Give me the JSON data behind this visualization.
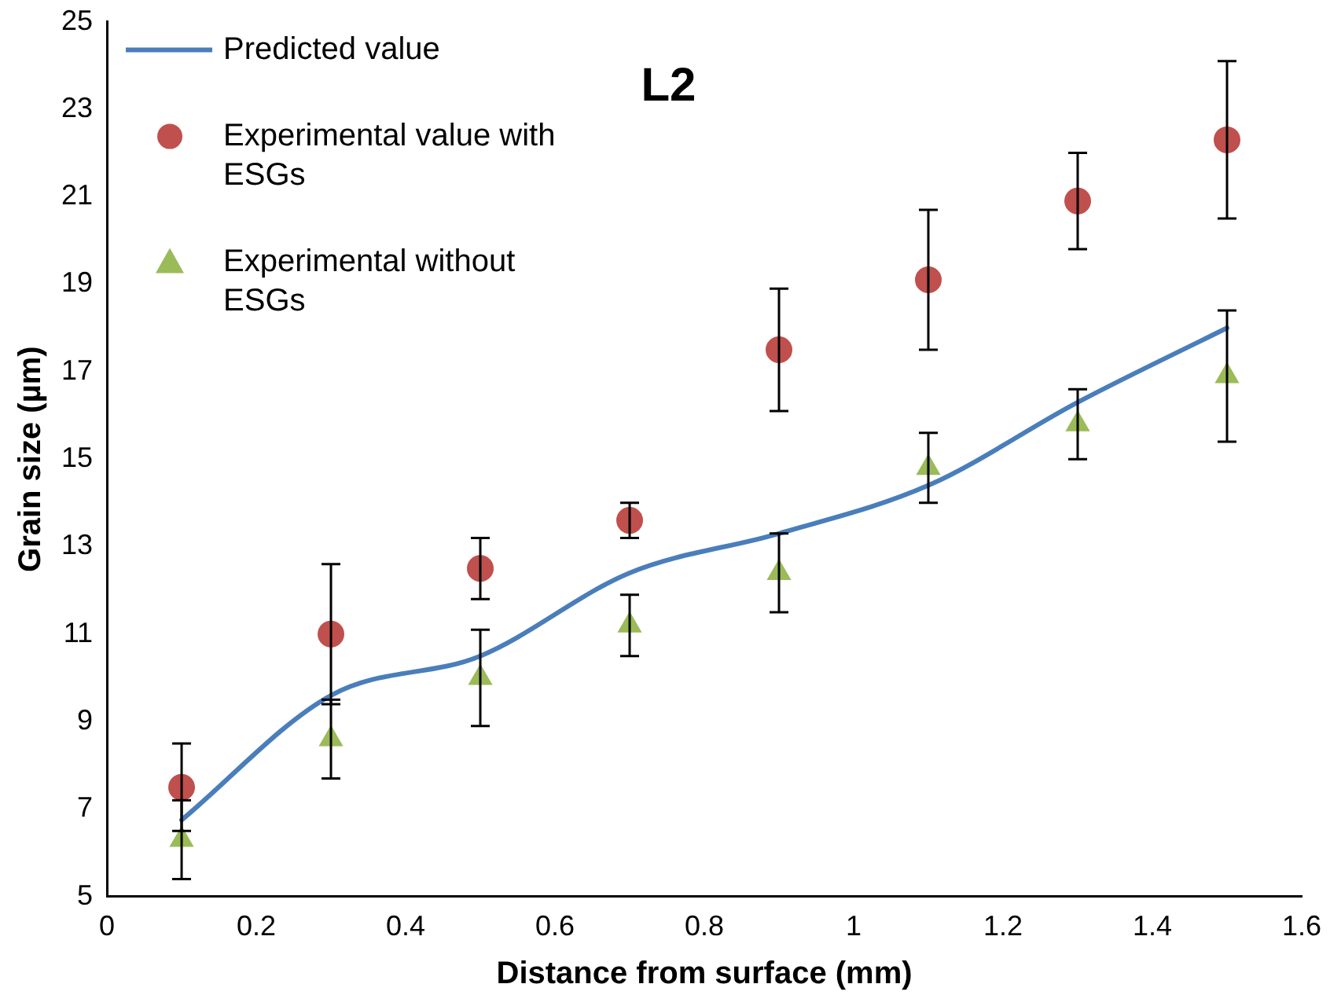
{
  "chart_data": {
    "type": "scatter",
    "title": "L2",
    "xlabel": "Distance from surface (mm)",
    "ylabel": "Grain size (µm)",
    "x": [
      0.1,
      0.3,
      0.5,
      0.7,
      0.9,
      1.1,
      1.3,
      1.5
    ],
    "series": [
      {
        "name": "Predicted value",
        "type": "line",
        "color": "#4a7ebb",
        "marker": "none",
        "values": [
          6.75,
          9.6,
          10.5,
          12.4,
          13.3,
          14.4,
          16.3,
          18.0
        ]
      },
      {
        "name": "Experimental value with ESGs",
        "color": "#c0504d",
        "marker": "circle",
        "values": [
          7.5,
          11.0,
          12.5,
          13.6,
          17.5,
          19.1,
          20.9,
          22.3
        ],
        "errors": [
          1.0,
          1.6,
          0.7,
          0.4,
          1.4,
          1.6,
          1.1,
          1.8
        ]
      },
      {
        "name": "Experimental without ESGs",
        "color": "#9bbb59",
        "marker": "triangle",
        "values": [
          6.3,
          8.6,
          10.0,
          11.2,
          12.4,
          14.8,
          15.8,
          16.9
        ],
        "errors": [
          0.9,
          0.9,
          1.1,
          0.7,
          0.9,
          0.8,
          0.8,
          1.5
        ]
      }
    ],
    "xlim": [
      0,
      1.6
    ],
    "xticks": [
      0,
      0.2,
      0.4,
      0.6,
      0.8,
      1,
      1.2,
      1.4,
      1.6
    ],
    "ylim": [
      5,
      25
    ],
    "yticks": [
      5,
      7,
      9,
      11,
      13,
      15,
      17,
      19,
      21,
      23,
      25
    ],
    "grid": false,
    "legend": "top left"
  }
}
